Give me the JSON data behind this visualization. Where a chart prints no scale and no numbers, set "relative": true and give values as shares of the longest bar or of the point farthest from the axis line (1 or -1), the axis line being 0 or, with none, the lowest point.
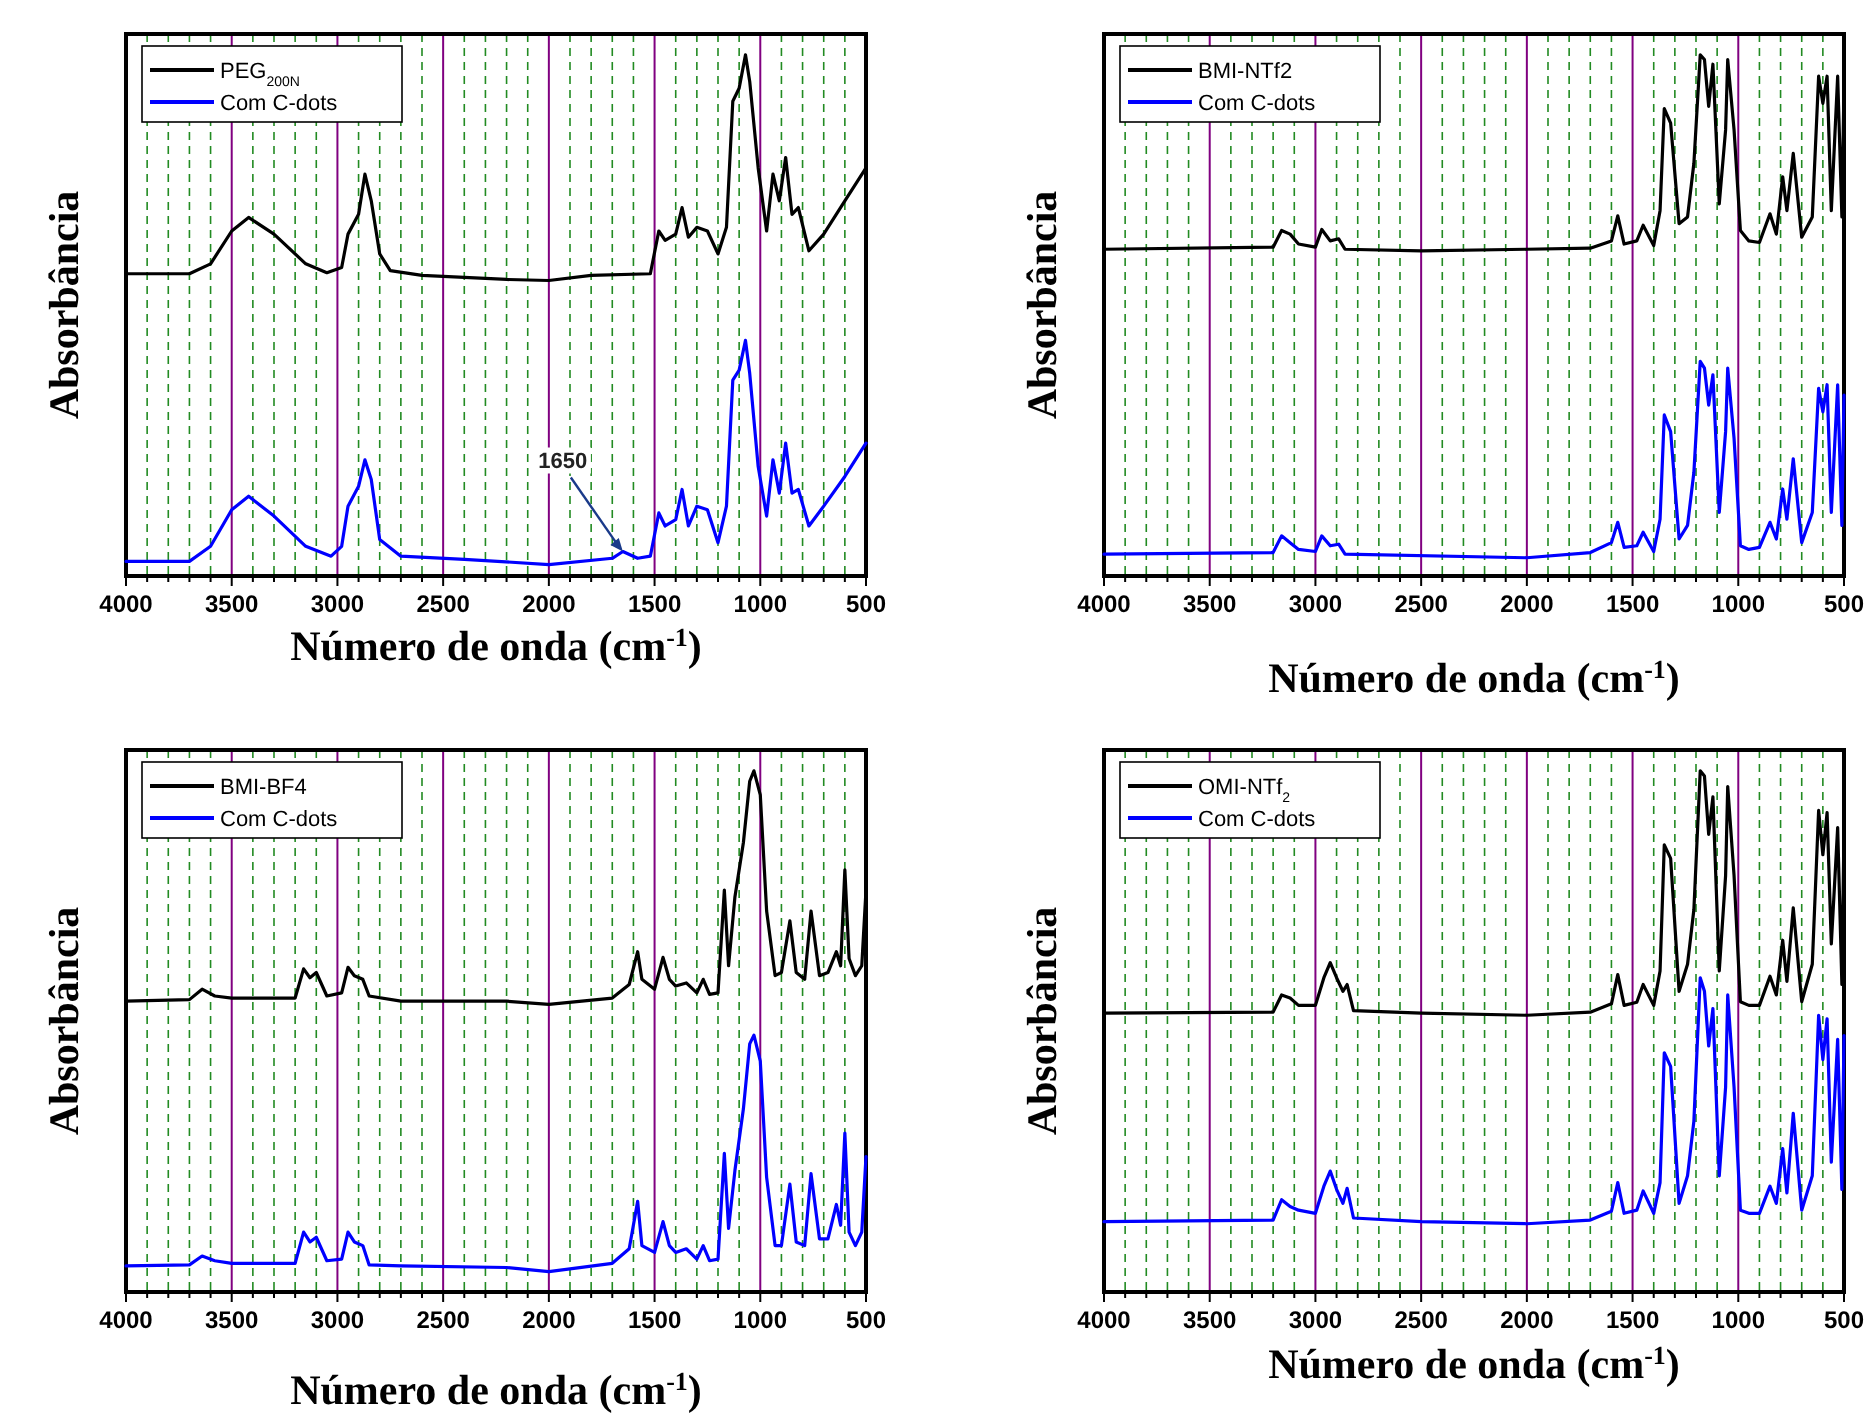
{
  "chart_data": [
    {
      "type": "line",
      "relative": true,
      "xlabel": "Número de onda (cm$^{-1}$)",
      "ylabel": "Absorbância",
      "xlim": [
        4000,
        500
      ],
      "xticks": [
        4000,
        {
          "value": 3900,
          "label": null
        },
        {
          "value": 3800,
          "label": null
        },
        {
          "value": 3700,
          "label": null
        },
        {
          "value": 3600,
          "label": null
        },
        3500,
        {
          "value": 3400,
          "label": null
        },
        {
          "value": 3300,
          "label": null
        },
        {
          "value": 3200,
          "label": null
        },
        {
          "value": 3100,
          "label": null
        },
        3000,
        {
          "value": 2900,
          "label": null
        },
        {
          "value": 2800,
          "label": null
        },
        {
          "value": 2700,
          "label": null
        },
        {
          "value": 2600,
          "label": null
        },
        2500,
        {
          "value": 2400,
          "label": null
        },
        {
          "value": 2300,
          "label": null
        },
        {
          "value": 2200,
          "label": null
        },
        {
          "value": 2100,
          "label": null
        },
        2000,
        {
          "value": 1900,
          "label": null
        },
        {
          "value": 1800,
          "label": null
        },
        {
          "value": 1700,
          "label": null
        },
        {
          "value": 1600,
          "label": null
        },
        1500,
        {
          "value": 1400,
          "label": null
        },
        {
          "value": 1300,
          "label": null
        },
        {
          "value": 1200,
          "label": null
        },
        {
          "value": 1100,
          "label": null
        },
        1000,
        {
          "value": 900,
          "label": null
        },
        {
          "value": 800,
          "label": null
        },
        {
          "value": 700,
          "label": null
        },
        {
          "value": 600,
          "label": null
        },
        500
      ],
      "grid": "x",
      "legend": "top left",
      "annotations": [
        {
          "text": "1650",
          "x": 1650,
          "y": 0.047
        }
      ],
      "series": [
        {
          "name": "PEG$_{200N}$",
          "color": "#000000",
          "x": [
            4000,
            3700,
            3600,
            3500,
            3420,
            3300,
            3150,
            3050,
            2980,
            2950,
            2900,
            2870,
            2840,
            2800,
            2750,
            2600,
            2200,
            2000,
            1800,
            1520,
            1480,
            1450,
            1400,
            1370,
            1340,
            1300,
            1250,
            1200,
            1160,
            1130,
            1100,
            1070,
            1050,
            1010,
            970,
            940,
            910,
            880,
            850,
            820,
            770,
            700,
            600,
            500
          ],
          "values": [
            0.58,
            0.58,
            0.599,
            0.662,
            0.688,
            0.656,
            0.599,
            0.582,
            0.592,
            0.656,
            0.694,
            0.771,
            0.72,
            0.618,
            0.586,
            0.577,
            0.569,
            0.567,
            0.577,
            0.58,
            0.662,
            0.644,
            0.656,
            0.707,
            0.65,
            0.669,
            0.662,
            0.618,
            0.669,
            0.911,
            0.936,
            1.0,
            0.949,
            0.783,
            0.662,
            0.771,
            0.72,
            0.803,
            0.694,
            0.707,
            0.624,
            0.656,
            0.72,
            0.783
          ]
        },
        {
          "name": "Com C-dots",
          "color": "#0000ff",
          "x": [
            4000,
            3700,
            3600,
            3500,
            3420,
            3300,
            3150,
            3030,
            2980,
            2950,
            2900,
            2870,
            2840,
            2800,
            2700,
            2400,
            2000,
            1700,
            1650,
            1580,
            1520,
            1480,
            1450,
            1400,
            1370,
            1340,
            1300,
            1250,
            1200,
            1160,
            1130,
            1100,
            1070,
            1050,
            1010,
            970,
            940,
            910,
            880,
            850,
            820,
            770,
            700,
            600,
            500
          ],
          "values": [
            0.028,
            0.028,
            0.057,
            0.127,
            0.153,
            0.115,
            0.057,
            0.038,
            0.057,
            0.134,
            0.172,
            0.223,
            0.185,
            0.07,
            0.038,
            0.032,
            0.022,
            0.034,
            0.047,
            0.034,
            0.038,
            0.121,
            0.096,
            0.108,
            0.166,
            0.096,
            0.134,
            0.127,
            0.064,
            0.134,
            0.376,
            0.395,
            0.452,
            0.389,
            0.21,
            0.115,
            0.223,
            0.159,
            0.255,
            0.159,
            0.166,
            0.096,
            0.134,
            0.191,
            0.255
          ]
        }
      ]
    },
    {
      "type": "line",
      "relative": true,
      "xlabel": "Número de onda (cm$^{-1}$)",
      "ylabel": "Absorbância",
      "xlim": [
        4000,
        500
      ],
      "xticks": [
        4000,
        {
          "value": 3900,
          "label": null
        },
        {
          "value": 3800,
          "label": null
        },
        {
          "value": 3700,
          "label": null
        },
        {
          "value": 3600,
          "label": null
        },
        3500,
        {
          "value": 3400,
          "label": null
        },
        {
          "value": 3300,
          "label": null
        },
        {
          "value": 3200,
          "label": null
        },
        {
          "value": 3100,
          "label": null
        },
        3000,
        {
          "value": 2900,
          "label": null
        },
        {
          "value": 2800,
          "label": null
        },
        {
          "value": 2700,
          "label": null
        },
        {
          "value": 2600,
          "label": null
        },
        2500,
        {
          "value": 2400,
          "label": null
        },
        {
          "value": 2300,
          "label": null
        },
        {
          "value": 2200,
          "label": null
        },
        {
          "value": 2100,
          "label": null
        },
        2000,
        {
          "value": 1900,
          "label": null
        },
        {
          "value": 1800,
          "label": null
        },
        {
          "value": 1700,
          "label": null
        },
        {
          "value": 1600,
          "label": null
        },
        1500,
        {
          "value": 1400,
          "label": null
        },
        {
          "value": 1300,
          "label": null
        },
        {
          "value": 1200,
          "label": null
        },
        {
          "value": 1100,
          "label": null
        },
        1000,
        {
          "value": 900,
          "label": null
        },
        {
          "value": 800,
          "label": null
        },
        {
          "value": 700,
          "label": null
        },
        {
          "value": 600,
          "label": null
        },
        500
      ],
      "grid": "x",
      "legend": "top left",
      "series": [
        {
          "name": "BMI-NTf2",
          "color": "#000000",
          "x": [
            4000,
            3200,
            3160,
            3120,
            3080,
            3000,
            2970,
            2930,
            2890,
            2860,
            2500,
            2000,
            1700,
            1600,
            1570,
            1540,
            1480,
            1450,
            1400,
            1370,
            1350,
            1320,
            1280,
            1240,
            1210,
            1180,
            1160,
            1140,
            1120,
            1090,
            1060,
            1050,
            1020,
            990,
            950,
            900,
            850,
            820,
            790,
            770,
            740,
            700,
            650,
            620,
            600,
            580,
            560,
            530,
            510,
            500
          ],
          "values": [
            0.627,
            0.631,
            0.663,
            0.656,
            0.637,
            0.631,
            0.665,
            0.643,
            0.647,
            0.627,
            0.624,
            0.627,
            0.629,
            0.643,
            0.691,
            0.637,
            0.643,
            0.673,
            0.634,
            0.701,
            0.897,
            0.869,
            0.676,
            0.689,
            0.792,
            1.0,
            0.991,
            0.901,
            0.982,
            0.714,
            0.856,
            0.991,
            0.856,
            0.663,
            0.643,
            0.64,
            0.695,
            0.656,
            0.766,
            0.701,
            0.811,
            0.65,
            0.689,
            0.959,
            0.907,
            0.959,
            0.701,
            0.959,
            0.689,
            0.94
          ]
        },
        {
          "name": "Com C-dots",
          "color": "#0000ff",
          "x": [
            4000,
            3200,
            3160,
            3120,
            3080,
            3000,
            2970,
            2930,
            2890,
            2860,
            2000,
            1700,
            1600,
            1570,
            1540,
            1480,
            1450,
            1400,
            1370,
            1350,
            1320,
            1280,
            1240,
            1210,
            1180,
            1160,
            1140,
            1120,
            1090,
            1060,
            1050,
            1020,
            990,
            950,
            900,
            850,
            820,
            790,
            770,
            740,
            700,
            650,
            620,
            600,
            580,
            560,
            530,
            510,
            500
          ],
          "values": [
            0.042,
            0.045,
            0.077,
            0.064,
            0.051,
            0.047,
            0.077,
            0.058,
            0.061,
            0.042,
            0.035,
            0.045,
            0.064,
            0.103,
            0.055,
            0.058,
            0.084,
            0.047,
            0.109,
            0.309,
            0.277,
            0.071,
            0.097,
            0.199,
            0.412,
            0.399,
            0.328,
            0.386,
            0.122,
            0.277,
            0.399,
            0.264,
            0.058,
            0.051,
            0.055,
            0.103,
            0.071,
            0.167,
            0.109,
            0.225,
            0.064,
            0.122,
            0.36,
            0.315,
            0.367,
            0.122,
            0.367,
            0.097,
            0.347
          ]
        }
      ]
    },
    {
      "type": "line",
      "relative": true,
      "xlabel": "Número de onda (cm$^{-1}$)",
      "ylabel": "Absorbância",
      "xlim": [
        4000,
        500
      ],
      "xticks": [
        4000,
        {
          "value": 3900,
          "label": null
        },
        {
          "value": 3800,
          "label": null
        },
        {
          "value": 3700,
          "label": null
        },
        {
          "value": 3600,
          "label": null
        },
        3500,
        {
          "value": 3400,
          "label": null
        },
        {
          "value": 3300,
          "label": null
        },
        {
          "value": 3200,
          "label": null
        },
        {
          "value": 3100,
          "label": null
        },
        3000,
        {
          "value": 2900,
          "label": null
        },
        {
          "value": 2800,
          "label": null
        },
        {
          "value": 2700,
          "label": null
        },
        {
          "value": 2600,
          "label": null
        },
        2500,
        {
          "value": 2400,
          "label": null
        },
        {
          "value": 2300,
          "label": null
        },
        {
          "value": 2200,
          "label": null
        },
        {
          "value": 2100,
          "label": null
        },
        2000,
        {
          "value": 1900,
          "label": null
        },
        {
          "value": 1800,
          "label": null
        },
        {
          "value": 1700,
          "label": null
        },
        {
          "value": 1600,
          "label": null
        },
        1500,
        {
          "value": 1400,
          "label": null
        },
        {
          "value": 1300,
          "label": null
        },
        {
          "value": 1200,
          "label": null
        },
        {
          "value": 1100,
          "label": null
        },
        1000,
        {
          "value": 900,
          "label": null
        },
        {
          "value": 800,
          "label": null
        },
        {
          "value": 700,
          "label": null
        },
        {
          "value": 600,
          "label": null
        },
        500
      ],
      "grid": "x",
      "legend": "top left",
      "series": [
        {
          "name": "BMI-BF4",
          "color": "#000000",
          "x": [
            4000,
            3700,
            3640,
            3580,
            3500,
            3200,
            3160,
            3130,
            3100,
            3050,
            2980,
            2950,
            2920,
            2880,
            2850,
            2700,
            2200,
            2000,
            1700,
            1620,
            1580,
            1560,
            1500,
            1460,
            1430,
            1400,
            1350,
            1300,
            1270,
            1240,
            1200,
            1170,
            1150,
            1120,
            1080,
            1050,
            1030,
            1000,
            970,
            930,
            900,
            860,
            830,
            790,
            760,
            720,
            680,
            640,
            620,
            600,
            580,
            550,
            520,
            500
          ],
          "values": [
            0.558,
            0.561,
            0.581,
            0.568,
            0.564,
            0.564,
            0.62,
            0.603,
            0.613,
            0.568,
            0.574,
            0.623,
            0.607,
            0.6,
            0.568,
            0.558,
            0.558,
            0.552,
            0.564,
            0.59,
            0.653,
            0.6,
            0.581,
            0.642,
            0.6,
            0.587,
            0.593,
            0.574,
            0.6,
            0.571,
            0.574,
            0.771,
            0.626,
            0.758,
            0.862,
            0.98,
            1.0,
            0.954,
            0.731,
            0.607,
            0.613,
            0.712,
            0.613,
            0.6,
            0.731,
            0.607,
            0.613,
            0.653,
            0.626,
            0.81,
            0.64,
            0.607,
            0.626,
            0.771
          ]
        },
        {
          "name": "Com C-dots",
          "color": "#0000ff",
          "x": [
            4000,
            3700,
            3640,
            3580,
            3500,
            3200,
            3160,
            3130,
            3100,
            3050,
            2980,
            2950,
            2920,
            2880,
            2850,
            2700,
            2200,
            2000,
            1700,
            1620,
            1580,
            1560,
            1500,
            1460,
            1430,
            1400,
            1350,
            1300,
            1270,
            1240,
            1200,
            1170,
            1150,
            1120,
            1080,
            1050,
            1030,
            1000,
            970,
            930,
            900,
            860,
            830,
            790,
            760,
            720,
            680,
            640,
            620,
            600,
            580,
            550,
            520,
            500
          ],
          "values": [
            0.05,
            0.052,
            0.069,
            0.06,
            0.055,
            0.055,
            0.115,
            0.096,
            0.105,
            0.06,
            0.063,
            0.115,
            0.096,
            0.089,
            0.052,
            0.05,
            0.047,
            0.039,
            0.055,
            0.083,
            0.174,
            0.089,
            0.076,
            0.135,
            0.089,
            0.076,
            0.083,
            0.063,
            0.089,
            0.06,
            0.063,
            0.266,
            0.122,
            0.233,
            0.351,
            0.476,
            0.493,
            0.443,
            0.22,
            0.089,
            0.089,
            0.207,
            0.096,
            0.089,
            0.227,
            0.102,
            0.102,
            0.168,
            0.128,
            0.305,
            0.115,
            0.089,
            0.115,
            0.26
          ]
        }
      ]
    },
    {
      "type": "line",
      "relative": true,
      "xlabel": "Número de onda (cm$^{-1}$)",
      "ylabel": "Absorbância",
      "xlim": [
        4000,
        500
      ],
      "xticks": [
        4000,
        {
          "value": 3900,
          "label": null
        },
        {
          "value": 3800,
          "label": null
        },
        {
          "value": 3700,
          "label": null
        },
        {
          "value": 3600,
          "label": null
        },
        3500,
        {
          "value": 3400,
          "label": null
        },
        {
          "value": 3300,
          "label": null
        },
        {
          "value": 3200,
          "label": null
        },
        {
          "value": 3100,
          "label": null
        },
        3000,
        {
          "value": 2900,
          "label": null
        },
        {
          "value": 2800,
          "label": null
        },
        {
          "value": 2700,
          "label": null
        },
        {
          "value": 2600,
          "label": null
        },
        2500,
        {
          "value": 2400,
          "label": null
        },
        {
          "value": 2300,
          "label": null
        },
        {
          "value": 2200,
          "label": null
        },
        {
          "value": 2100,
          "label": null
        },
        2000,
        {
          "value": 1900,
          "label": null
        },
        {
          "value": 1800,
          "label": null
        },
        {
          "value": 1700,
          "label": null
        },
        {
          "value": 1600,
          "label": null
        },
        1500,
        {
          "value": 1400,
          "label": null
        },
        {
          "value": 1300,
          "label": null
        },
        {
          "value": 1200,
          "label": null
        },
        {
          "value": 1100,
          "label": null
        },
        1000,
        {
          "value": 900,
          "label": null
        },
        {
          "value": 800,
          "label": null
        },
        {
          "value": 700,
          "label": null
        },
        {
          "value": 600,
          "label": null
        },
        500
      ],
      "grid": "x",
      "legend": "top left",
      "series": [
        {
          "name": "OMI-NTf$_{2}$",
          "color": "#000000",
          "x": [
            4000,
            3200,
            3160,
            3120,
            3080,
            3000,
            2960,
            2930,
            2900,
            2870,
            2850,
            2820,
            2500,
            2000,
            1700,
            1600,
            1570,
            1540,
            1480,
            1450,
            1400,
            1370,
            1350,
            1320,
            1280,
            1240,
            1210,
            1180,
            1160,
            1140,
            1120,
            1090,
            1060,
            1050,
            1020,
            990,
            950,
            900,
            850,
            820,
            790,
            770,
            740,
            700,
            650,
            620,
            600,
            580,
            560,
            530,
            510,
            500
          ],
          "values": [
            0.535,
            0.537,
            0.57,
            0.564,
            0.55,
            0.55,
            0.603,
            0.632,
            0.603,
            0.577,
            0.59,
            0.54,
            0.535,
            0.531,
            0.537,
            0.553,
            0.609,
            0.55,
            0.556,
            0.59,
            0.55,
            0.616,
            0.858,
            0.832,
            0.577,
            0.629,
            0.734,
            1.0,
            0.99,
            0.878,
            0.95,
            0.616,
            0.799,
            0.97,
            0.799,
            0.557,
            0.55,
            0.55,
            0.606,
            0.57,
            0.675,
            0.596,
            0.737,
            0.557,
            0.629,
            0.924,
            0.839,
            0.92,
            0.668,
            0.891,
            0.59,
            0.885
          ]
        },
        {
          "name": "Com C-dots",
          "color": "#0000ff",
          "x": [
            4000,
            3200,
            3160,
            3120,
            3080,
            3000,
            2960,
            2930,
            2900,
            2870,
            2850,
            2820,
            2500,
            2000,
            1700,
            1600,
            1570,
            1540,
            1480,
            1450,
            1400,
            1370,
            1350,
            1320,
            1280,
            1240,
            1210,
            1180,
            1160,
            1140,
            1120,
            1090,
            1060,
            1050,
            1020,
            990,
            950,
            900,
            850,
            820,
            790,
            770,
            740,
            700,
            650,
            620,
            600,
            580,
            560,
            530,
            510,
            500
          ],
          "values": [
            0.135,
            0.138,
            0.177,
            0.164,
            0.157,
            0.151,
            0.203,
            0.232,
            0.197,
            0.17,
            0.199,
            0.142,
            0.135,
            0.131,
            0.138,
            0.155,
            0.21,
            0.151,
            0.157,
            0.194,
            0.151,
            0.21,
            0.459,
            0.433,
            0.17,
            0.223,
            0.328,
            0.603,
            0.577,
            0.472,
            0.544,
            0.223,
            0.393,
            0.57,
            0.393,
            0.157,
            0.151,
            0.151,
            0.203,
            0.17,
            0.275,
            0.19,
            0.343,
            0.157,
            0.223,
            0.531,
            0.446,
            0.524,
            0.249,
            0.485,
            0.197,
            0.492
          ]
        }
      ]
    }
  ]
}
